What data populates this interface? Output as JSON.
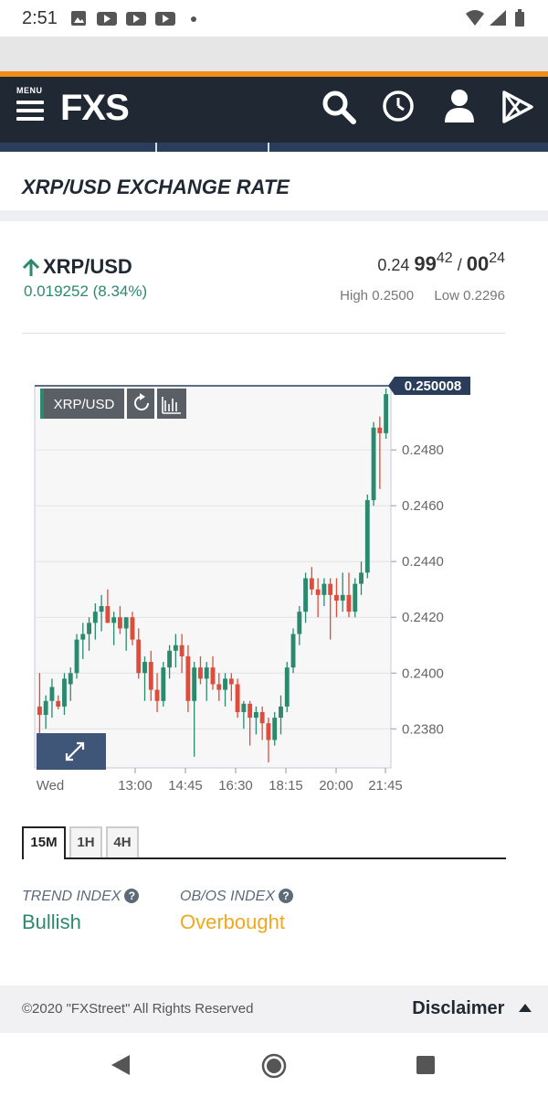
{
  "status_bar": {
    "time": "2:51"
  },
  "header": {
    "menu_label": "MENU",
    "logo": "FXS"
  },
  "page": {
    "title": "XRP/USD EXCHANGE RATE"
  },
  "quote": {
    "pair": "XRP/USD",
    "change": "0.019252 (8.34%)",
    "bid_prefix": "0.24",
    "bid_big": "99",
    "bid_sup": "42",
    "separator": "/",
    "ask_big": "00",
    "ask_sup": "24",
    "high": "High 0.2500",
    "low": "Low 0.2296"
  },
  "chart_data": {
    "type": "candlestick",
    "symbol_label": "XRP/USD",
    "last_price_label": "0.250008",
    "y_ticks": [
      "0.2380",
      "0.2400",
      "0.2420",
      "0.2440",
      "0.2460",
      "0.2480"
    ],
    "y_tick_values": [
      0.238,
      0.24,
      0.242,
      0.244,
      0.246,
      0.248
    ],
    "x_ticks": [
      "Wed",
      "13:00",
      "14:45",
      "16:30",
      "18:15",
      "20:00",
      "21:45"
    ],
    "ylim": [
      0.2366,
      0.2503
    ],
    "candles": [
      [
        0.2388,
        0.24,
        0.2376,
        0.2385
      ],
      [
        0.2385,
        0.2392,
        0.238,
        0.239
      ],
      [
        0.239,
        0.2398,
        0.2384,
        0.2395
      ],
      [
        0.239,
        0.2392,
        0.2387,
        0.2388
      ],
      [
        0.2388,
        0.24,
        0.2385,
        0.2398
      ],
      [
        0.2396,
        0.2402,
        0.239,
        0.24
      ],
      [
        0.24,
        0.2414,
        0.2398,
        0.2412
      ],
      [
        0.2412,
        0.2418,
        0.2405,
        0.2414
      ],
      [
        0.2414,
        0.242,
        0.2408,
        0.2418
      ],
      [
        0.2418,
        0.2425,
        0.2412,
        0.2422
      ],
      [
        0.2422,
        0.2428,
        0.2415,
        0.2424
      ],
      [
        0.2424,
        0.243,
        0.2418,
        0.2418
      ],
      [
        0.2418,
        0.2422,
        0.241,
        0.242
      ],
      [
        0.242,
        0.2424,
        0.2414,
        0.2416
      ],
      [
        0.2416,
        0.242,
        0.2408,
        0.242
      ],
      [
        0.242,
        0.2422,
        0.241,
        0.2412
      ],
      [
        0.2412,
        0.2416,
        0.2398,
        0.24
      ],
      [
        0.24,
        0.2406,
        0.239,
        0.2404
      ],
      [
        0.2404,
        0.2408,
        0.239,
        0.2394
      ],
      [
        0.2394,
        0.24,
        0.2386,
        0.239
      ],
      [
        0.239,
        0.2404,
        0.2388,
        0.2402
      ],
      [
        0.2402,
        0.241,
        0.2398,
        0.2408
      ],
      [
        0.2408,
        0.2414,
        0.2402,
        0.241
      ],
      [
        0.241,
        0.2414,
        0.24,
        0.2406
      ],
      [
        0.2406,
        0.241,
        0.2386,
        0.239
      ],
      [
        0.239,
        0.2404,
        0.237,
        0.2402
      ],
      [
        0.2402,
        0.2406,
        0.2396,
        0.2398
      ],
      [
        0.2398,
        0.2404,
        0.239,
        0.2402
      ],
      [
        0.2402,
        0.2406,
        0.2394,
        0.2396
      ],
      [
        0.2396,
        0.24,
        0.239,
        0.2394
      ],
      [
        0.2394,
        0.24,
        0.2388,
        0.2398
      ],
      [
        0.2398,
        0.24,
        0.239,
        0.2396
      ],
      [
        0.2396,
        0.2398,
        0.2384,
        0.2386
      ],
      [
        0.2386,
        0.239,
        0.238,
        0.2389
      ],
      [
        0.2389,
        0.239,
        0.2374,
        0.2384
      ],
      [
        0.2384,
        0.2388,
        0.2378,
        0.2386
      ],
      [
        0.2386,
        0.2388,
        0.2376,
        0.2382
      ],
      [
        0.2382,
        0.2384,
        0.2368,
        0.2376
      ],
      [
        0.2376,
        0.2386,
        0.2374,
        0.2384
      ],
      [
        0.2384,
        0.2392,
        0.2378,
        0.2388
      ],
      [
        0.2388,
        0.2404,
        0.2386,
        0.2402
      ],
      [
        0.2402,
        0.2416,
        0.24,
        0.2414
      ],
      [
        0.2414,
        0.2424,
        0.241,
        0.2422
      ],
      [
        0.2422,
        0.2436,
        0.2418,
        0.2434
      ],
      [
        0.2434,
        0.2438,
        0.2428,
        0.243
      ],
      [
        0.243,
        0.2434,
        0.242,
        0.2428
      ],
      [
        0.2428,
        0.2434,
        0.2424,
        0.2432
      ],
      [
        0.2432,
        0.2434,
        0.2412,
        0.2428
      ],
      [
        0.2428,
        0.2434,
        0.242,
        0.2426
      ],
      [
        0.2426,
        0.2436,
        0.2422,
        0.2428
      ],
      [
        0.2428,
        0.2436,
        0.242,
        0.2422
      ],
      [
        0.2422,
        0.2434,
        0.242,
        0.2432
      ],
      [
        0.2432,
        0.244,
        0.2428,
        0.2436
      ],
      [
        0.2436,
        0.2464,
        0.2434,
        0.2462
      ],
      [
        0.2462,
        0.249,
        0.246,
        0.2488
      ],
      [
        0.2488,
        0.2492,
        0.2466,
        0.2486
      ],
      [
        0.2486,
        0.2502,
        0.2484,
        0.25
      ]
    ]
  },
  "timeframes": [
    "15M",
    "1H",
    "4H"
  ],
  "indices": {
    "trend_label": "TREND INDEX",
    "trend_value": "Bullish",
    "obos_label": "OB/OS INDEX",
    "obos_value": "Overbought",
    "colors": {
      "bullish": "#2b8a6e",
      "overbought": "#f0a81e"
    }
  },
  "footer": {
    "copyright": "©2020 \"FXStreet\" All Rights Reserved",
    "disclaimer": "Disclaimer"
  },
  "colors": {
    "up": "#2b8a6e",
    "down": "#e04b3a",
    "header_bg": "#1f2833",
    "accent": "#f08c1a"
  }
}
